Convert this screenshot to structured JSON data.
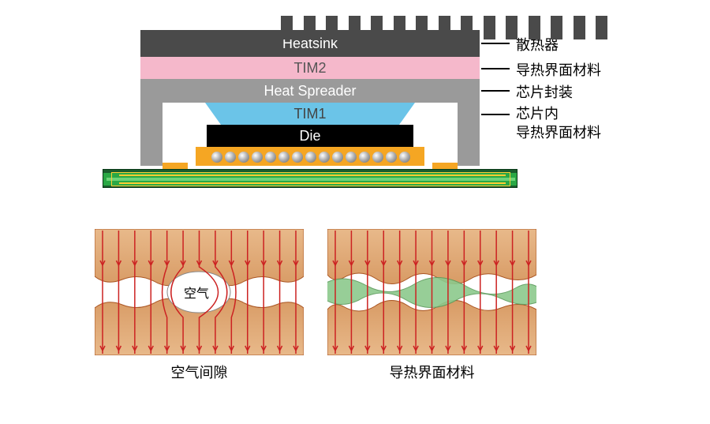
{
  "diagram": {
    "type": "infographic",
    "background_color": "#ffffff",
    "stack": {
      "heatsink": {
        "label": "Heatsink",
        "color": "#4a4a4a",
        "text_color": "#ffffff",
        "fins": 15
      },
      "tim2": {
        "label": "TIM2",
        "color": "#f5b8cb",
        "text_color": "#555555"
      },
      "spreader": {
        "label": "Heat Spreader",
        "color": "#9a9a9a",
        "text_color": "#ffffff"
      },
      "tim1": {
        "label": "TIM1",
        "color": "#6bc4e8",
        "text_color": "#444444"
      },
      "die": {
        "label": "Die",
        "color": "#000000",
        "text_color": "#ffffff"
      },
      "substrate": {
        "color": "#f5a623",
        "balls": 15,
        "ball_color": "#bbbbbb"
      },
      "pcb": {
        "color_outer": "#1a5c2d",
        "color_mid": "#2aa845",
        "color_inner": "#ffd966",
        "trace_color": "#ffcc33"
      }
    },
    "callouts": {
      "heatsink": "散热器",
      "tim2": "导热界面材料",
      "spreader": "芯片封装",
      "tim1_line1": "芯片内",
      "tim1_line2": "导热界面材料"
    },
    "callout_fontsize": 18,
    "comparison": {
      "left": {
        "caption": "空气间隙",
        "center_label": "空气"
      },
      "right": {
        "caption": "导热界面材料"
      },
      "surface_color_light": "#e8b98a",
      "surface_color_dark": "#d89b65",
      "flowline_color": "#cc2222",
      "tim_fill_color": "#7cc47c",
      "flowline_count": 13
    }
  }
}
